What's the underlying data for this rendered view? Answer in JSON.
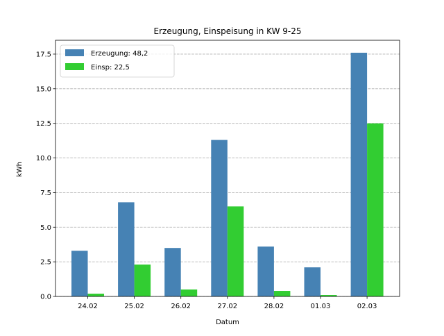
{
  "chart_data": {
    "type": "bar",
    "title": "Erzeugung, Einspeisung in KW 9-25",
    "xlabel": "Datum",
    "ylabel": "kWh",
    "categories": [
      "24.02",
      "25.02",
      "26.02",
      "27.02",
      "28.02",
      "01.03",
      "02.03"
    ],
    "series": [
      {
        "name": "Erzeugung: 48,2",
        "color": "#4682b4",
        "values": [
          3.3,
          6.8,
          3.5,
          11.3,
          3.6,
          2.1,
          17.6
        ]
      },
      {
        "name": "Einsp: 22,5",
        "color": "#32cd32",
        "values": [
          0.2,
          2.3,
          0.5,
          6.5,
          0.4,
          0.1,
          12.5
        ]
      }
    ],
    "ylim": [
      0,
      18.5
    ],
    "yticks": [
      "0.0",
      "2.5",
      "5.0",
      "7.5",
      "10.0",
      "12.5",
      "15.0",
      "17.5"
    ],
    "grid": "y, dashed",
    "legend_position": "top-left"
  }
}
